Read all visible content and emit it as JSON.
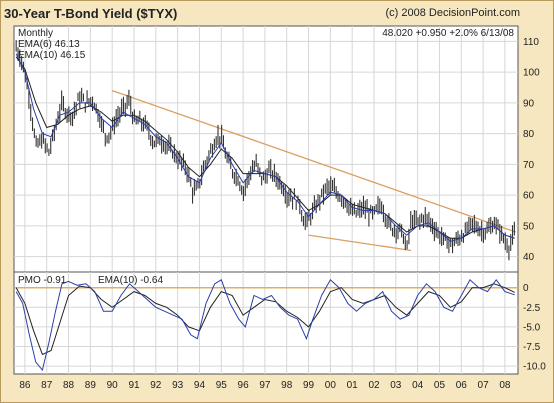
{
  "chart_data": [
    {
      "type": "line",
      "title": "30-Year T-Bond Yield ($TYX)",
      "source": "(c) 2008 DecisionPoint.com",
      "period": "Monthly",
      "quote": "48.020 +0.950 +2.0% 6/13/08",
      "legend": [
        "EMA(6) 46.13",
        "EMA(10) 46.15"
      ],
      "ylim": [
        35,
        115
      ],
      "yticks": [
        40,
        50,
        60,
        70,
        80,
        90,
        100,
        110
      ],
      "xlim": [
        1985.5,
        2008.6
      ],
      "xticks": [
        "86",
        "87",
        "88",
        "89",
        "90",
        "91",
        "92",
        "93",
        "94",
        "95",
        "96",
        "97",
        "98",
        "99",
        "00",
        "01",
        "02",
        "03",
        "04",
        "05",
        "06",
        "07",
        "08"
      ],
      "price": [
        [
          1985.6,
          108
        ],
        [
          1985.9,
          103
        ],
        [
          1986.2,
          92
        ],
        [
          1986.5,
          76
        ],
        [
          1986.8,
          78
        ],
        [
          1987.1,
          74
        ],
        [
          1987.4,
          82
        ],
        [
          1987.7,
          90
        ],
        [
          1987.9,
          87
        ],
        [
          1988.2,
          86
        ],
        [
          1988.5,
          92
        ],
        [
          1988.8,
          90
        ],
        [
          1989.1,
          91
        ],
        [
          1989.4,
          86
        ],
        [
          1989.7,
          79
        ],
        [
          1989.9,
          80
        ],
        [
          1990.2,
          85
        ],
        [
          1990.5,
          88
        ],
        [
          1990.8,
          91
        ],
        [
          1991.0,
          84
        ],
        [
          1991.3,
          84
        ],
        [
          1991.6,
          82
        ],
        [
          1991.9,
          77
        ],
        [
          1992.2,
          78
        ],
        [
          1992.5,
          76
        ],
        [
          1992.8,
          74
        ],
        [
          1993.1,
          71
        ],
        [
          1993.4,
          69
        ],
        [
          1993.7,
          61
        ],
        [
          1993.9,
          62
        ],
        [
          1994.2,
          69
        ],
        [
          1994.5,
          74
        ],
        [
          1994.8,
          79
        ],
        [
          1995.0,
          79
        ],
        [
          1995.2,
          73
        ],
        [
          1995.5,
          68
        ],
        [
          1995.8,
          65
        ],
        [
          1996.0,
          61
        ],
        [
          1996.3,
          67
        ],
        [
          1996.6,
          70
        ],
        [
          1996.9,
          65
        ],
        [
          1997.2,
          68
        ],
        [
          1997.5,
          66
        ],
        [
          1997.8,
          63
        ],
        [
          1998.0,
          60
        ],
        [
          1998.3,
          59
        ],
        [
          1998.6,
          57
        ],
        [
          1998.8,
          51
        ],
        [
          1999.0,
          52
        ],
        [
          1999.3,
          56
        ],
        [
          1999.6,
          60
        ],
        [
          1999.9,
          63
        ],
        [
          2000.1,
          62
        ],
        [
          2000.4,
          60
        ],
        [
          2000.7,
          58
        ],
        [
          2000.9,
          55
        ],
        [
          2001.2,
          54
        ],
        [
          2001.5,
          56
        ],
        [
          2001.8,
          54
        ],
        [
          2002.0,
          54
        ],
        [
          2002.3,
          57
        ],
        [
          2002.6,
          52
        ],
        [
          2002.8,
          49
        ],
        [
          2003.0,
          49
        ],
        [
          2003.3,
          48
        ],
        [
          2003.5,
          42
        ],
        [
          2003.7,
          52
        ],
        [
          2004.0,
          51
        ],
        [
          2004.3,
          53
        ],
        [
          2004.6,
          51
        ],
        [
          2004.8,
          49
        ],
        [
          2005.0,
          47
        ],
        [
          2005.3,
          45
        ],
        [
          2005.6,
          44
        ],
        [
          2005.9,
          46
        ],
        [
          2006.2,
          48
        ],
        [
          2006.5,
          51
        ],
        [
          2006.8,
          49
        ],
        [
          2007.0,
          48
        ],
        [
          2007.3,
          49
        ],
        [
          2007.5,
          51
        ],
        [
          2007.8,
          48
        ],
        [
          2008.0,
          45
        ],
        [
          2008.2,
          43
        ],
        [
          2008.45,
          48
        ]
      ],
      "ema6": [
        [
          1985.6,
          106
        ],
        [
          1986.0,
          100
        ],
        [
          1986.4,
          88
        ],
        [
          1986.8,
          80
        ],
        [
          1987.2,
          79
        ],
        [
          1987.6,
          86
        ],
        [
          1988.0,
          87
        ],
        [
          1988.5,
          90
        ],
        [
          1989.0,
          90
        ],
        [
          1989.5,
          85
        ],
        [
          1990.0,
          82
        ],
        [
          1990.5,
          87
        ],
        [
          1991.0,
          85
        ],
        [
          1991.5,
          83
        ],
        [
          1992.0,
          79
        ],
        [
          1992.5,
          77
        ],
        [
          1993.0,
          72
        ],
        [
          1993.5,
          66
        ],
        [
          1994.0,
          64
        ],
        [
          1994.5,
          72
        ],
        [
          1995.0,
          77
        ],
        [
          1995.5,
          70
        ],
        [
          1996.0,
          64
        ],
        [
          1996.5,
          68
        ],
        [
          1997.0,
          67
        ],
        [
          1997.5,
          66
        ],
        [
          1998.0,
          61
        ],
        [
          1998.5,
          58
        ],
        [
          1999.0,
          53
        ],
        [
          1999.5,
          57
        ],
        [
          2000.0,
          61
        ],
        [
          2000.5,
          60
        ],
        [
          2001.0,
          56
        ],
        [
          2001.5,
          55
        ],
        [
          2002.0,
          55
        ],
        [
          2002.5,
          54
        ],
        [
          2003.0,
          50
        ],
        [
          2003.5,
          47
        ],
        [
          2004.0,
          50
        ],
        [
          2004.5,
          51
        ],
        [
          2005.0,
          48
        ],
        [
          2005.5,
          45
        ],
        [
          2006.0,
          46
        ],
        [
          2006.5,
          49
        ],
        [
          2007.0,
          49
        ],
        [
          2007.5,
          50
        ],
        [
          2008.0,
          47
        ],
        [
          2008.45,
          46
        ]
      ],
      "ema10": [
        [
          1985.6,
          105
        ],
        [
          1986.0,
          101
        ],
        [
          1986.5,
          90
        ],
        [
          1987.0,
          82
        ],
        [
          1987.5,
          83
        ],
        [
          1988.0,
          86
        ],
        [
          1988.5,
          88
        ],
        [
          1989.0,
          89
        ],
        [
          1989.5,
          87
        ],
        [
          1990.0,
          84
        ],
        [
          1990.5,
          86
        ],
        [
          1991.0,
          86
        ],
        [
          1991.5,
          84
        ],
        [
          1992.0,
          81
        ],
        [
          1992.5,
          78
        ],
        [
          1993.0,
          74
        ],
        [
          1993.5,
          69
        ],
        [
          1994.0,
          66
        ],
        [
          1994.5,
          70
        ],
        [
          1995.0,
          75
        ],
        [
          1995.5,
          72
        ],
        [
          1996.0,
          67
        ],
        [
          1996.5,
          67
        ],
        [
          1997.0,
          67
        ],
        [
          1997.5,
          66
        ],
        [
          1998.0,
          63
        ],
        [
          1998.5,
          59
        ],
        [
          1999.0,
          55
        ],
        [
          1999.5,
          57
        ],
        [
          2000.0,
          60
        ],
        [
          2000.5,
          60
        ],
        [
          2001.0,
          57
        ],
        [
          2001.5,
          56
        ],
        [
          2002.0,
          55
        ],
        [
          2002.5,
          54
        ],
        [
          2003.0,
          51
        ],
        [
          2003.5,
          48
        ],
        [
          2004.0,
          50
        ],
        [
          2004.5,
          50
        ],
        [
          2005.0,
          48
        ],
        [
          2005.5,
          46
        ],
        [
          2006.0,
          46
        ],
        [
          2006.5,
          48
        ],
        [
          2007.0,
          49
        ],
        [
          2007.5,
          50
        ],
        [
          2008.0,
          47
        ],
        [
          2008.45,
          46
        ]
      ],
      "trendlines": [
        {
          "from": [
            1990.0,
            94
          ],
          "to": [
            2008.5,
            48
          ]
        },
        {
          "from": [
            1999.0,
            47
          ],
          "to": [
            2003.7,
            42
          ]
        }
      ],
      "colors": {
        "price": "#333333",
        "ema6": "#2b3fa8",
        "ema10": "#222222",
        "trend": "#d9a060",
        "grid": "#d6d6d6",
        "bg": "#ffffff",
        "frame": "#f6e7c1"
      }
    },
    {
      "type": "line",
      "legend": [
        "PMO -0.91",
        "EMA(10) -0.64"
      ],
      "ylim": [
        -11,
        2
      ],
      "yticks": [
        0,
        -2.5,
        -5,
        -7.5,
        -10
      ],
      "ytick_labels": [
        "0",
        "-2.5",
        "-5.0",
        "-7.5",
        "-10.0"
      ],
      "zero_line_color": "#e0b060",
      "pmo": [
        [
          1985.6,
          -0.5
        ],
        [
          1985.9,
          -2
        ],
        [
          1986.2,
          -6
        ],
        [
          1986.5,
          -9.5
        ],
        [
          1986.8,
          -10.5
        ],
        [
          1987.1,
          -7
        ],
        [
          1987.4,
          -3
        ],
        [
          1987.7,
          0.5
        ],
        [
          1988.0,
          0.8
        ],
        [
          1988.4,
          0.3
        ],
        [
          1988.8,
          0.5
        ],
        [
          1989.2,
          -0.5
        ],
        [
          1989.6,
          -3
        ],
        [
          1990.0,
          -3
        ],
        [
          1990.4,
          -1
        ],
        [
          1990.8,
          0.5
        ],
        [
          1991.2,
          -0.5
        ],
        [
          1991.6,
          -1.5
        ],
        [
          1992.0,
          -2.5
        ],
        [
          1992.4,
          -3
        ],
        [
          1992.8,
          -3.5
        ],
        [
          1993.2,
          -4
        ],
        [
          1993.6,
          -6
        ],
        [
          1993.9,
          -6.5
        ],
        [
          1994.3,
          -2
        ],
        [
          1994.7,
          0.5
        ],
        [
          1995.0,
          1
        ],
        [
          1995.4,
          -2
        ],
        [
          1995.8,
          -4
        ],
        [
          1996.1,
          -5
        ],
        [
          1996.5,
          -1
        ],
        [
          1996.9,
          -1.5
        ],
        [
          1997.3,
          -1
        ],
        [
          1997.7,
          -2.5
        ],
        [
          1998.1,
          -3.5
        ],
        [
          1998.5,
          -4
        ],
        [
          1998.9,
          -6.5
        ],
        [
          1999.2,
          -4
        ],
        [
          1999.6,
          -1
        ],
        [
          2000.0,
          1
        ],
        [
          2000.4,
          0
        ],
        [
          2000.8,
          -2
        ],
        [
          2001.2,
          -3
        ],
        [
          2001.6,
          -2
        ],
        [
          2002.0,
          -1.5
        ],
        [
          2002.4,
          -0.5
        ],
        [
          2002.8,
          -3
        ],
        [
          2003.2,
          -4
        ],
        [
          2003.6,
          -3.5
        ],
        [
          2004.0,
          -1
        ],
        [
          2004.4,
          0.5
        ],
        [
          2004.8,
          -0.5
        ],
        [
          2005.2,
          -2.5
        ],
        [
          2005.6,
          -3
        ],
        [
          2006.0,
          -1
        ],
        [
          2006.4,
          1
        ],
        [
          2006.8,
          0
        ],
        [
          2007.2,
          -0.5
        ],
        [
          2007.6,
          1
        ],
        [
          2008.0,
          -0.5
        ],
        [
          2008.45,
          -0.9
        ]
      ],
      "pmo_ema": [
        [
          1985.6,
          0
        ],
        [
          1986.0,
          -2
        ],
        [
          1986.4,
          -5.5
        ],
        [
          1986.8,
          -8.5
        ],
        [
          1987.2,
          -8
        ],
        [
          1987.6,
          -4.5
        ],
        [
          1988.0,
          -1
        ],
        [
          1988.5,
          0.2
        ],
        [
          1989.0,
          0
        ],
        [
          1989.5,
          -1.5
        ],
        [
          1990.0,
          -2.5
        ],
        [
          1990.5,
          -1.5
        ],
        [
          1991.0,
          -0.5
        ],
        [
          1991.5,
          -1
        ],
        [
          1992.0,
          -2
        ],
        [
          1992.5,
          -2.5
        ],
        [
          1993.0,
          -3.5
        ],
        [
          1993.5,
          -5
        ],
        [
          1994.0,
          -5.5
        ],
        [
          1994.5,
          -2.5
        ],
        [
          1995.0,
          -0.5
        ],
        [
          1995.5,
          -1
        ],
        [
          1996.0,
          -3.5
        ],
        [
          1996.5,
          -2.5
        ],
        [
          1997.0,
          -1.5
        ],
        [
          1997.5,
          -1.8
        ],
        [
          1998.0,
          -3
        ],
        [
          1998.5,
          -3.8
        ],
        [
          1999.0,
          -5
        ],
        [
          1999.5,
          -3
        ],
        [
          2000.0,
          -0.5
        ],
        [
          2000.5,
          0
        ],
        [
          2001.0,
          -1.5
        ],
        [
          2001.5,
          -2
        ],
        [
          2002.0,
          -1.5
        ],
        [
          2002.5,
          -1
        ],
        [
          2003.0,
          -2.5
        ],
        [
          2003.5,
          -3.5
        ],
        [
          2004.0,
          -2
        ],
        [
          2004.5,
          -0.5
        ],
        [
          2005.0,
          -1
        ],
        [
          2005.5,
          -2.5
        ],
        [
          2006.0,
          -1.8
        ],
        [
          2006.5,
          0
        ],
        [
          2007.0,
          0
        ],
        [
          2007.5,
          0.5
        ],
        [
          2008.0,
          0
        ],
        [
          2008.45,
          -0.6
        ]
      ],
      "colors": {
        "pmo": "#2b3fa8",
        "pmo_ema": "#222222"
      }
    }
  ]
}
